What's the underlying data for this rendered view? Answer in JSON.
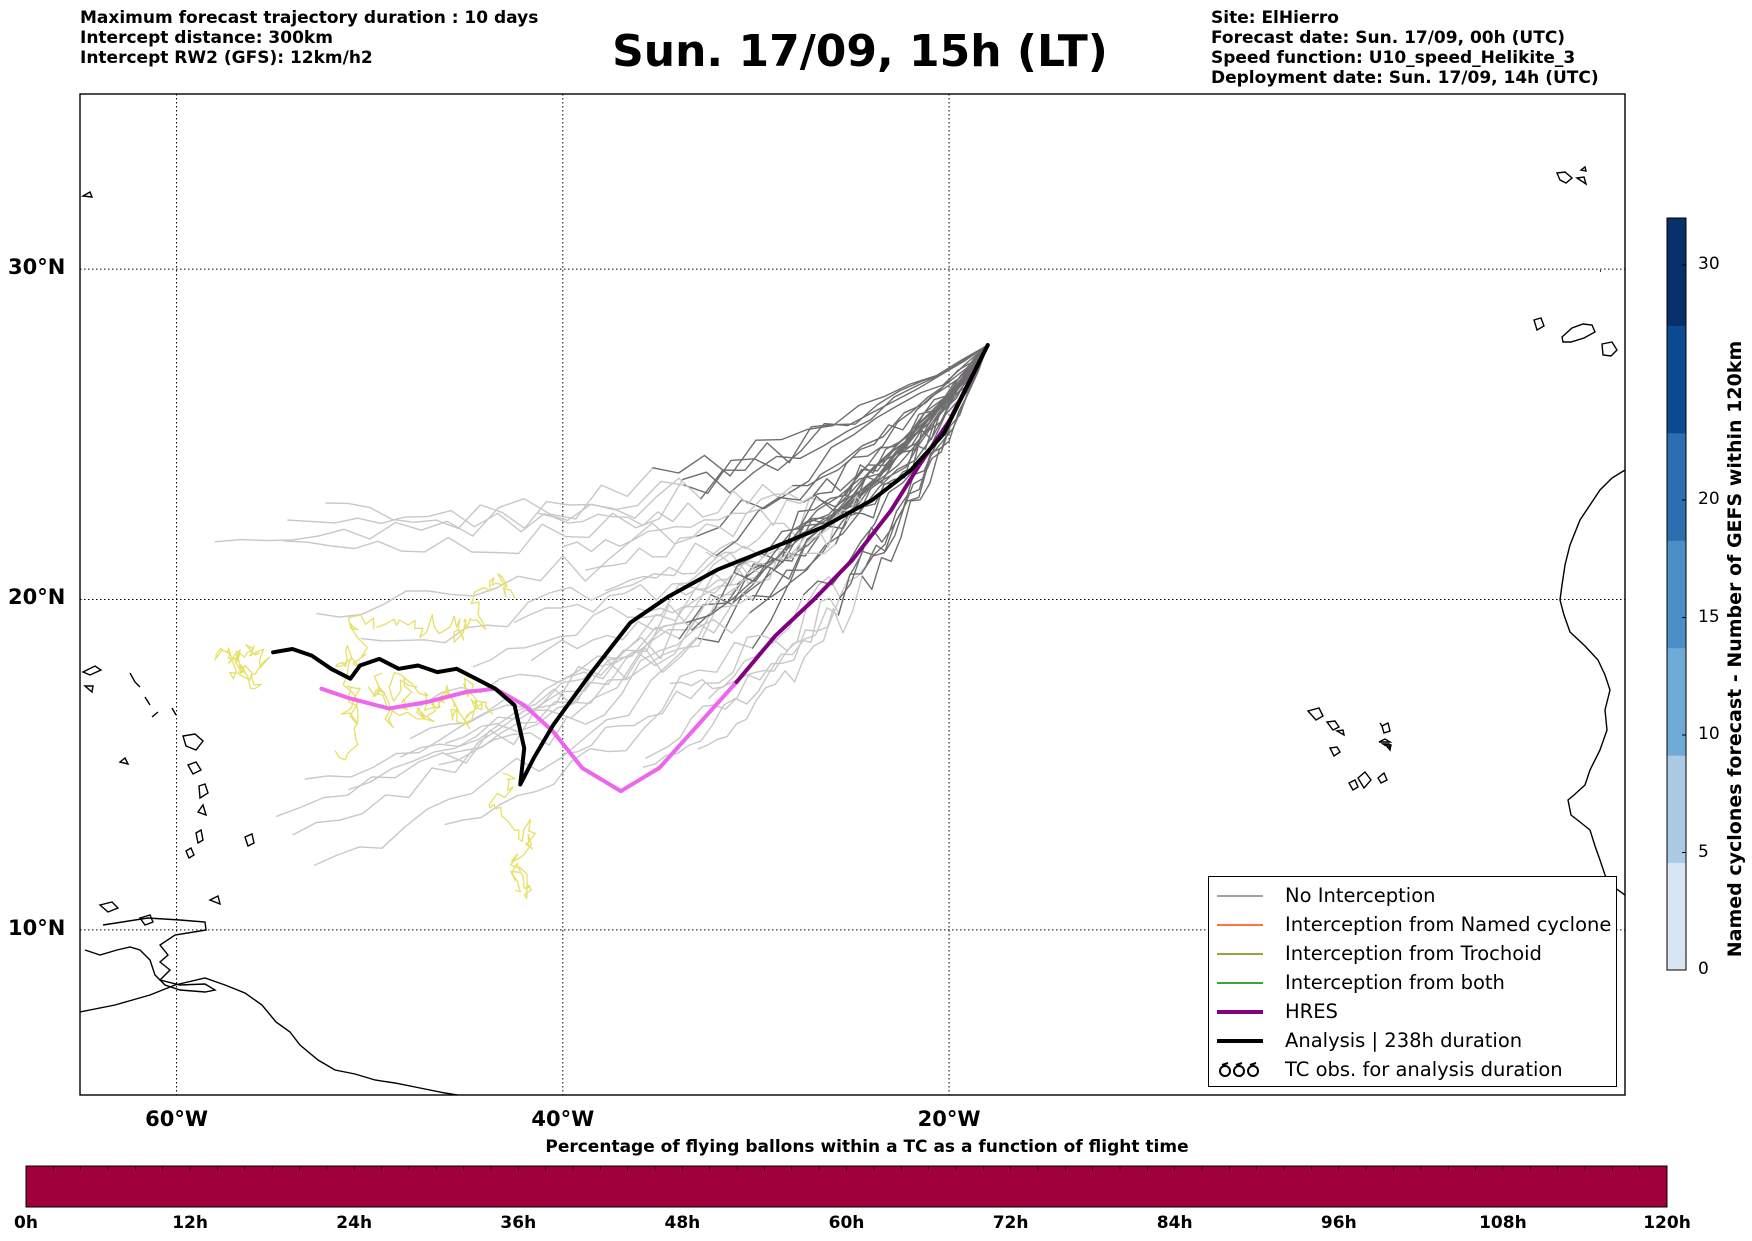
{
  "header": {
    "left_lines": [
      "Maximum forecast trajectory duration : 10 days",
      "Intercept distance: 300km",
      "Intercept RW2 (GFS):  12km/h2"
    ],
    "title": "Sun. 17/09, 15h (LT)",
    "right_lines": [
      "Site: ElHierro",
      "Forecast date: Sun. 17/09, 00h (UTC)",
      "Speed function: U10_speed_Helikite_3",
      "Deployment date: Sun. 17/09, 14h (UTC)"
    ]
  },
  "map": {
    "lon_range": [
      -65,
      15
    ],
    "lat_range": [
      5.0,
      35.3
    ],
    "lon_ticks": [
      {
        "lon": -60,
        "label": "60°W"
      },
      {
        "lon": -40,
        "label": "40°W"
      },
      {
        "lon": -20,
        "label": "20°W"
      }
    ],
    "lat_ticks": [
      {
        "lat": 30,
        "label": "30°N"
      },
      {
        "lat": 20,
        "label": "20°N"
      },
      {
        "lat": 10,
        "label": "10°N"
      }
    ],
    "colors": {
      "no_interception": "#6e6e6e",
      "no_interception_light": "#c8c8c8",
      "named_cyclone": "#ff4500",
      "trochoid": "#808000",
      "both": "#008000",
      "hres_dark": "#800080",
      "hres_light": "#ee66ee",
      "analysis": "#000000",
      "tc_obs": "#e6e066"
    }
  },
  "legend": {
    "items": [
      {
        "label": "No Interception",
        "color": "#808080",
        "width": 1.5
      },
      {
        "label": "Interception from Named cyclone",
        "color": "#ff4500",
        "width": 1.5
      },
      {
        "label": "Interception from Trochoid",
        "color": "#808000",
        "width": 1.5
      },
      {
        "label": "Interception from both",
        "color": "#008000",
        "width": 1.5
      },
      {
        "label": "HRES",
        "color": "#800080",
        "width": 4
      },
      {
        "label": "Analysis | 238h duration",
        "color": "#000000",
        "width": 4
      },
      {
        "label": "TC obs. for analysis duration",
        "symbol": "tc"
      }
    ]
  },
  "colorbar": {
    "label": "Named cyclones forecast - Number of GEFS within 120km",
    "min": 0,
    "max": 32,
    "ticks": [
      0,
      5,
      10,
      15,
      20,
      30
    ],
    "colors": [
      "#d8e6f4",
      "#aacbe3",
      "#6fabd6",
      "#4a90c6",
      "#2b6fb0",
      "#0c4a93",
      "#08306b"
    ]
  },
  "percentage_bar": {
    "title": "Percentage of flying ballons within a TC as a function of flight time",
    "color": "#a0003c",
    "ticks": [
      "0h",
      "12h",
      "24h",
      "36h",
      "48h",
      "60h",
      "72h",
      "84h",
      "96h",
      "108h",
      "120h"
    ]
  },
  "chart_data": {
    "type": "map",
    "analysis": [
      [
        -55,
        18.4
      ],
      [
        -54,
        18.5
      ],
      [
        -53,
        18.3
      ],
      [
        -52,
        17.9
      ],
      [
        -51,
        17.6
      ],
      [
        -50.5,
        18.0
      ],
      [
        -49.5,
        18.2
      ],
      [
        -48.5,
        17.9
      ],
      [
        -47.5,
        18.0
      ],
      [
        -46.5,
        17.8
      ],
      [
        -45.5,
        17.9
      ],
      [
        -44.5,
        17.6
      ],
      [
        -43.5,
        17.3
      ],
      [
        -42.5,
        16.8
      ],
      [
        -42,
        15.5
      ],
      [
        -42.2,
        14.4
      ],
      [
        -41.5,
        15.2
      ],
      [
        -40.5,
        16.2
      ],
      [
        -38.5,
        17.8
      ],
      [
        -36.5,
        19.3
      ],
      [
        -34.5,
        20.1
      ],
      [
        -32,
        20.9
      ],
      [
        -29,
        21.6
      ],
      [
        -26.5,
        22.2
      ],
      [
        -24,
        23.0
      ],
      [
        -22,
        23.9
      ],
      [
        -20.3,
        25.0
      ],
      [
        -18.0,
        27.7
      ]
    ],
    "hres": [
      [
        -52.5,
        17.3
      ],
      [
        -51,
        17.0
      ],
      [
        -49,
        16.7
      ],
      [
        -47,
        16.9
      ],
      [
        -45,
        17.2
      ],
      [
        -43.5,
        17.3
      ],
      [
        -42,
        16.8
      ],
      [
        -40.5,
        16.0
      ],
      [
        -39,
        14.9
      ],
      [
        -37,
        14.2
      ],
      [
        -35,
        14.9
      ],
      [
        -33,
        16.2
      ],
      [
        -31,
        17.5
      ],
      [
        -29,
        18.9
      ],
      [
        -27,
        20.0
      ],
      [
        -25,
        21.2
      ],
      [
        -23,
        22.7
      ],
      [
        -21.5,
        24.1
      ],
      [
        -20,
        25.4
      ],
      [
        -18.0,
        27.7
      ]
    ]
  }
}
